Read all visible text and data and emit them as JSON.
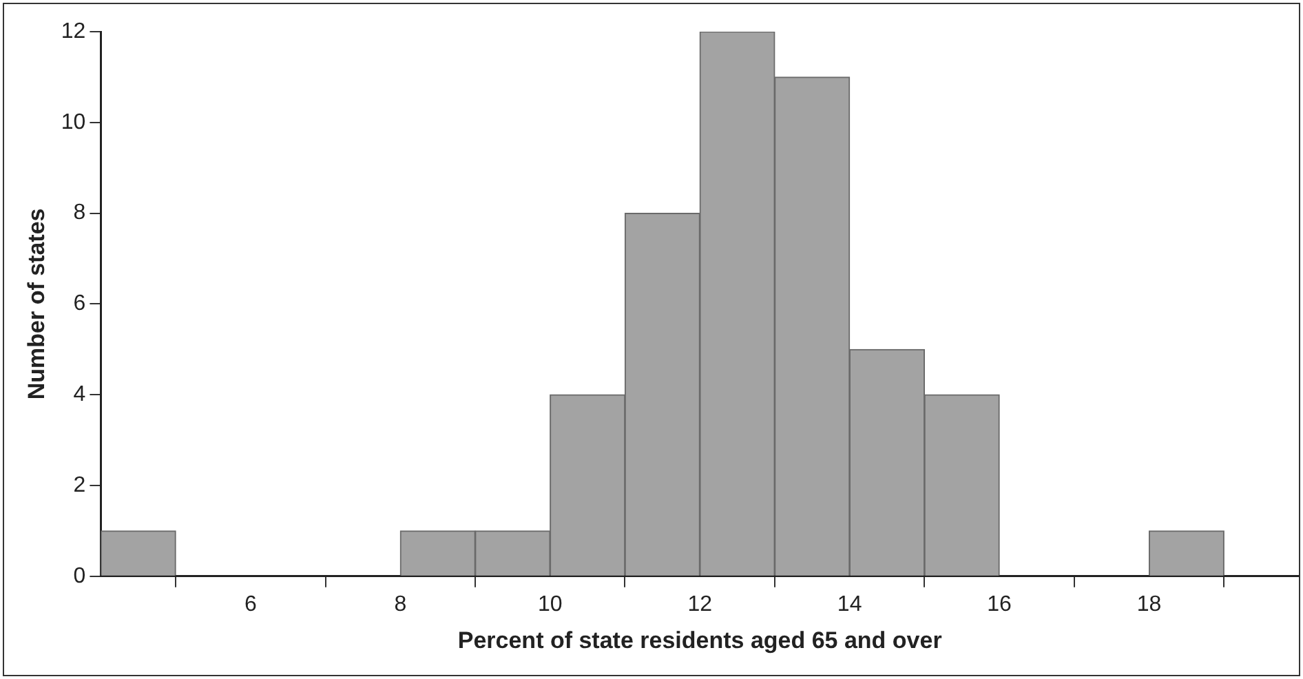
{
  "chart_data": {
    "type": "histogram",
    "xlabel": "Percent of state residents aged 65 and over",
    "ylabel": "Number of states",
    "bins": [
      4,
      5,
      6,
      7,
      8,
      9,
      10,
      11,
      12,
      13,
      14,
      15,
      16,
      17,
      18,
      19
    ],
    "values": [
      1,
      0,
      0,
      0,
      1,
      1,
      4,
      8,
      12,
      11,
      5,
      4,
      0,
      0,
      1
    ],
    "color": "#a3a3a3",
    "xlim": [
      4,
      20
    ],
    "xticks": [
      6,
      8,
      10,
      12,
      14,
      16,
      18
    ],
    "ylim": [
      0,
      12
    ],
    "yticks": [
      0,
      2,
      4,
      6,
      8,
      10,
      12
    ],
    "grid": false
  }
}
